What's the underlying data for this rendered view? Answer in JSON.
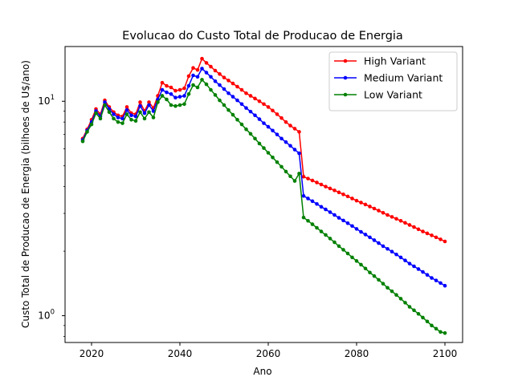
{
  "chart_data": {
    "type": "line",
    "title": "Evolucao do Custo Total de Producao de Energia",
    "xlabel": "Ano",
    "ylabel": "Custo Total de Producao de Energia (bilhoes de U$/ano)",
    "yscale": "log",
    "xlim": [
      2014,
      2104
    ],
    "ylim": [
      0.75,
      18.0
    ],
    "x_ticks": [
      2020,
      2040,
      2060,
      2080,
      2100
    ],
    "y_ticks": [
      {
        "value": 1,
        "label": "10",
        "sup": "0"
      },
      {
        "value": 10,
        "label": "10",
        "sup": "1"
      }
    ],
    "legend": {
      "placement": "top-right"
    },
    "x_start": 2018,
    "x_end": 2100,
    "series": [
      {
        "name": "High Variant",
        "color": "#ff0000",
        "values": [
          6.7,
          7.4,
          8.2,
          9.2,
          8.7,
          10.1,
          9.4,
          8.9,
          8.6,
          8.5,
          9.4,
          8.8,
          8.7,
          9.9,
          9.0,
          9.9,
          9.3,
          10.6,
          12.2,
          11.8,
          11.6,
          11.2,
          11.3,
          11.5,
          13.1,
          14.3,
          14.0,
          15.8,
          15.1,
          14.5,
          13.9,
          13.4,
          12.9,
          12.5,
          12.1,
          11.7,
          11.3,
          10.9,
          10.6,
          10.3,
          10.0,
          9.7,
          9.4,
          9.05,
          8.7,
          8.35,
          8.0,
          7.7,
          7.45,
          7.2,
          4.45,
          4.36,
          4.27,
          4.18,
          4.09,
          4.0,
          3.92,
          3.84,
          3.76,
          3.68,
          3.6,
          3.52,
          3.44,
          3.37,
          3.3,
          3.23,
          3.16,
          3.09,
          3.02,
          2.95,
          2.89,
          2.83,
          2.77,
          2.71,
          2.65,
          2.59,
          2.53,
          2.47,
          2.42,
          2.37,
          2.32,
          2.27,
          2.22
        ]
      },
      {
        "name": "Medium Variant",
        "color": "#0000ff",
        "values": [
          6.6,
          7.3,
          8.0,
          9.0,
          8.5,
          9.9,
          9.2,
          8.7,
          8.4,
          8.3,
          9.1,
          8.6,
          8.5,
          9.5,
          8.8,
          9.6,
          9.0,
          10.2,
          11.3,
          11.0,
          10.8,
          10.4,
          10.5,
          10.6,
          11.8,
          13.2,
          13.0,
          14.2,
          13.6,
          13.0,
          12.4,
          11.9,
          11.4,
          10.9,
          10.5,
          10.1,
          9.7,
          9.3,
          8.95,
          8.6,
          8.25,
          7.9,
          7.6,
          7.3,
          7.0,
          6.7,
          6.45,
          6.2,
          5.95,
          5.72,
          3.62,
          3.52,
          3.42,
          3.32,
          3.22,
          3.13,
          3.04,
          2.95,
          2.86,
          2.78,
          2.7,
          2.62,
          2.54,
          2.46,
          2.39,
          2.32,
          2.25,
          2.18,
          2.11,
          2.05,
          1.99,
          1.93,
          1.87,
          1.81,
          1.75,
          1.7,
          1.65,
          1.6,
          1.55,
          1.5,
          1.46,
          1.42,
          1.38
        ]
      },
      {
        "name": "Low Variant",
        "color": "#008000",
        "values": [
          6.5,
          7.2,
          7.8,
          8.8,
          8.3,
          9.6,
          8.9,
          8.3,
          8.0,
          7.9,
          8.7,
          8.2,
          8.1,
          8.9,
          8.3,
          8.9,
          8.4,
          9.9,
          10.6,
          10.2,
          9.6,
          9.5,
          9.6,
          9.7,
          10.8,
          11.9,
          11.6,
          12.6,
          12.0,
          11.3,
          10.7,
          10.1,
          9.6,
          9.1,
          8.65,
          8.2,
          7.8,
          7.4,
          7.05,
          6.7,
          6.35,
          6.05,
          5.75,
          5.47,
          5.2,
          4.95,
          4.7,
          4.47,
          4.25,
          4.6,
          2.87,
          2.77,
          2.67,
          2.57,
          2.47,
          2.38,
          2.29,
          2.2,
          2.11,
          2.03,
          1.95,
          1.87,
          1.8,
          1.73,
          1.66,
          1.59,
          1.53,
          1.47,
          1.41,
          1.35,
          1.3,
          1.25,
          1.2,
          1.15,
          1.1,
          1.06,
          1.02,
          0.98,
          0.94,
          0.9,
          0.87,
          0.84,
          0.83
        ]
      }
    ]
  }
}
